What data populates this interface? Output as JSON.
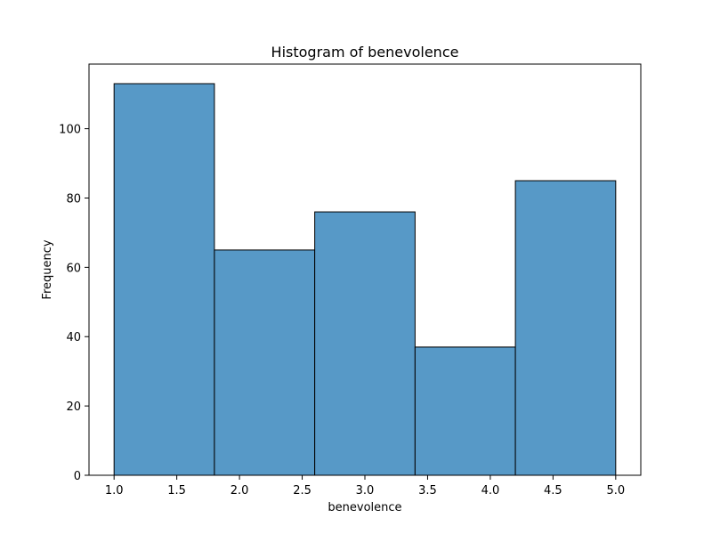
{
  "chart_data": {
    "type": "bar",
    "title": "Histogram of benevolence",
    "xlabel": "benevolence",
    "ylabel": "Frequency",
    "bins": [
      {
        "start": 1.0,
        "end": 1.8,
        "value": 113
      },
      {
        "start": 1.8,
        "end": 2.6,
        "value": 65
      },
      {
        "start": 2.6,
        "end": 3.4,
        "value": 76
      },
      {
        "start": 3.4,
        "end": 4.2,
        "value": 37
      },
      {
        "start": 4.2,
        "end": 5.0,
        "value": 85
      }
    ],
    "xlim": [
      0.8,
      5.2
    ],
    "ylim": [
      0,
      118.65
    ],
    "xticks": [
      1.0,
      1.5,
      2.0,
      2.5,
      3.0,
      3.5,
      4.0,
      4.5,
      5.0
    ],
    "xtick_labels": [
      "1.0",
      "1.5",
      "2.0",
      "2.5",
      "3.0",
      "3.5",
      "4.0",
      "4.5",
      "5.0"
    ],
    "yticks": [
      0,
      20,
      40,
      60,
      80,
      100
    ],
    "ytick_labels": [
      "0",
      "20",
      "40",
      "60",
      "80",
      "100"
    ],
    "grid": false,
    "bar_color": "#5799c7",
    "edge_color": "#000000"
  }
}
